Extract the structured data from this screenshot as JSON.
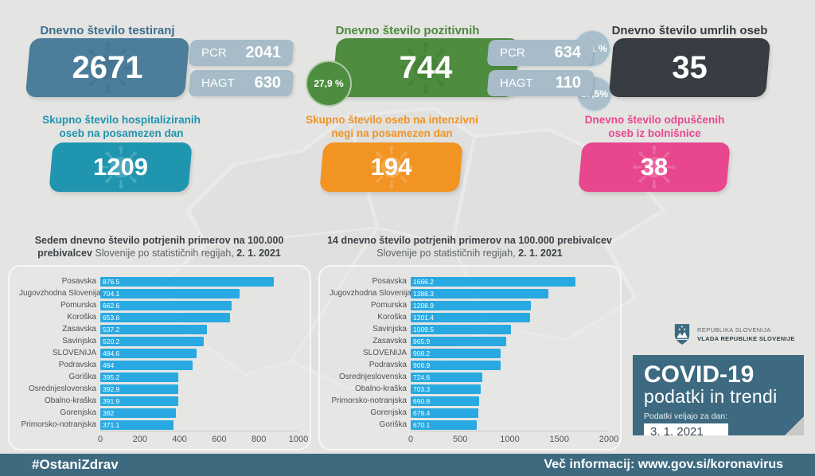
{
  "stats": {
    "testings": {
      "title": "Dnevno število testiranj",
      "value": "2671",
      "pcr_label": "PCR",
      "pcr_value": "2041",
      "hagt_label": "HAGT",
      "hagt_value": "630"
    },
    "positives": {
      "title": "Dnevno število pozitivnih",
      "value": "744",
      "total_share": "27,9 %",
      "pcr_label": "PCR",
      "pcr_value": "634",
      "pcr_share": "31,1 %",
      "hagt_label": "HAGT",
      "hagt_value": "110",
      "hagt_share": "17,5%"
    },
    "deaths": {
      "title": "Dnevno število umrlih oseb",
      "value": "35"
    },
    "hospitalized": {
      "title_line1": "Skupno število hospitaliziranih",
      "title_line2": "oseb na posamezen dan",
      "value": "1209"
    },
    "icu": {
      "title_line1": "Skupno število oseb na intenzivni",
      "title_line2": "negi na posamezen dan",
      "value": "194"
    },
    "discharged": {
      "title_line1": "Dnevno število odpuščenih",
      "title_line2": "oseb iz bolnišnice",
      "value": "38"
    }
  },
  "colors": {
    "steel_blue": "#4c7e9b",
    "green": "#4e8c3f",
    "dark": "#373d43",
    "teal": "#2095af",
    "orange": "#f29422",
    "pink": "#e8478d",
    "pill_gray": "#a7bcc8",
    "bar_blue": "#29a9e1",
    "band_teal": "#3e6a80"
  },
  "chart_data": [
    {
      "type": "bar",
      "orientation": "horizontal",
      "title_bold": "Sedem dnevno število potrjenih primerov na 100.000 prebivalcev",
      "title_regular": "Slovenije po statističnih regijah,",
      "title_date": "2. 1. 2021",
      "categories": [
        "Posavska",
        "Jugovzhodna Slovenija",
        "Pomurska",
        "Koroška",
        "Zasavska",
        "Savinjska",
        "SLOVENIJA",
        "Podravska",
        "Goriška",
        "Osrednjeslovenska",
        "Obalno-kraška",
        "Gorenjska",
        "Primorsko-notranjska"
      ],
      "values": [
        876.5,
        704.1,
        662.6,
        653.6,
        537.2,
        520.2,
        484.6,
        464,
        395.2,
        392.9,
        391.9,
        382,
        371.1
      ],
      "value_labels": [
        "876.5",
        "704.1",
        "662.6",
        "653.6",
        "537.2",
        "520.2",
        "484.6",
        "464",
        "395.2",
        "392.9",
        "391.9",
        "382",
        "371.1"
      ],
      "xlim": [
        0,
        1000
      ],
      "ticks": [
        0,
        200,
        400,
        600,
        800,
        1000
      ],
      "bar_color": "#29a9e1",
      "grid": false,
      "legend": "none"
    },
    {
      "type": "bar",
      "orientation": "horizontal",
      "title_bold": "14 dnevno število potrjenih primerov na 100.000 prebivalcev",
      "title_regular": "Slovenije po statističnih regijah,",
      "title_date": "2. 1. 2021",
      "categories": [
        "Posavska",
        "Jugovzhodna Slovenija",
        "Pomurska",
        "Koroška",
        "Savinjska",
        "Zasavska",
        "SLOVENIJA",
        "Podravska",
        "Osrednjeslovenska",
        "Obalno-kraška",
        "Primorsko-notranjska",
        "Gorenjska",
        "Goriška"
      ],
      "values": [
        1666.2,
        1388.3,
        1208.9,
        1201.4,
        1009.5,
        965.9,
        908.2,
        906.9,
        724.6,
        703.3,
        690.8,
        679.4,
        670.1
      ],
      "value_labels": [
        "1666.2",
        "1388.3",
        "1208.9",
        "1201.4",
        "1009.5",
        "965.9",
        "908.2",
        "906.9",
        "724.6",
        "703.3",
        "690.8",
        "679.4",
        "670.1"
      ],
      "xlim": [
        0,
        2000
      ],
      "ticks": [
        0,
        500,
        1000,
        1500,
        2000
      ],
      "bar_color": "#29a9e1",
      "grid": false,
      "legend": "none"
    }
  ],
  "branding": {
    "gov_line1": "REPUBLIKA SLOVENIJA",
    "gov_line2": "VLADA REPUBLIKE SLOVENIJE",
    "covid_title": "COVID-19",
    "covid_subtitle": "podatki in trendi",
    "date_label": "Podatki veljajo za dan:",
    "date_value": "3. 1. 2021"
  },
  "footer": {
    "hashtag": "#OstaniZdrav",
    "info": "Več informacij: www.gov.si/koronavirus"
  }
}
